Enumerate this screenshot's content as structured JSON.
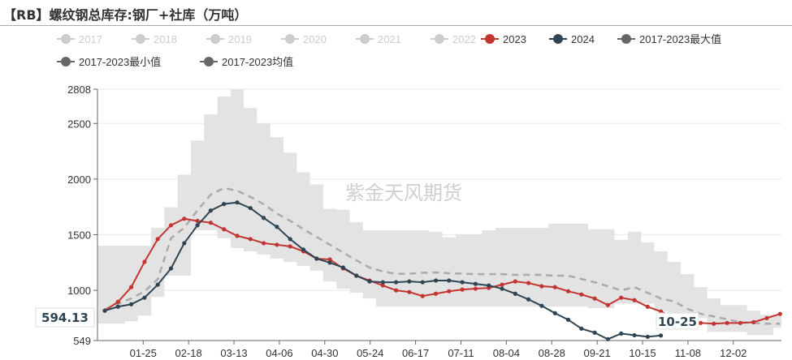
{
  "title": "【RB】螺纹钢总库存:钢厂+社库（万吨）",
  "watermark": "紫金天风期货",
  "legend": [
    {
      "label": "2017",
      "color": "#cccccc",
      "active": false
    },
    {
      "label": "2018",
      "color": "#cccccc",
      "active": false
    },
    {
      "label": "2019",
      "color": "#cccccc",
      "active": false
    },
    {
      "label": "2020",
      "color": "#cccccc",
      "active": false
    },
    {
      "label": "2021",
      "color": "#cccccc",
      "active": false
    },
    {
      "label": "2022",
      "color": "#cccccc",
      "active": false
    },
    {
      "label": "2023",
      "color": "#c23531",
      "active": true
    },
    {
      "label": "2024",
      "color": "#2f4554",
      "active": true
    },
    {
      "label": "2017-2023最大值",
      "color": "#666666",
      "active": true
    },
    {
      "label": "2017-2023最小值",
      "color": "#666666",
      "active": true
    },
    {
      "label": "2017-2023均值",
      "color": "#666666",
      "active": true
    }
  ],
  "axis_pointer": {
    "y_label": "594.13",
    "x_label": "10-25"
  },
  "chart_data": {
    "type": "line",
    "ylim": [
      549,
      2808
    ],
    "y_ticks": [
      "549",
      "1000",
      "1500",
      "2000",
      "2500",
      "2808"
    ],
    "x_tick_labels": [
      "01-25",
      "02-18",
      "03-13",
      "04-06",
      "04-30",
      "05-24",
      "06-17",
      "07-11",
      "08-04",
      "08-28",
      "09-21",
      "10-15",
      "11-08",
      "12-02"
    ],
    "grid": true,
    "legend_position": "top",
    "band": {
      "max": [
        1402,
        1402,
        1402,
        1402,
        1563,
        1747,
        2040,
        2347,
        2581,
        2742,
        2808,
        2639,
        2500,
        2376,
        2237,
        2061,
        1952,
        1732,
        1725,
        1614,
        1541,
        1541,
        1541,
        1541,
        1541,
        1527,
        1476,
        1505,
        1505,
        1541,
        1563,
        1563,
        1563,
        1563,
        1600,
        1600,
        1600,
        1549,
        1549,
        1454,
        1527,
        1432,
        1351,
        1256,
        1146,
        1029,
        927,
        868,
        868,
        817,
        780,
        780
      ],
      "min": [
        700,
        700,
        722,
        773,
        941,
        1132,
        1132,
        1541,
        1541,
        1468,
        1380,
        1351,
        1322,
        1285,
        1256,
        1219,
        1176,
        1080,
        1015,
        978,
        927,
        853,
        853,
        853,
        853,
        853,
        853,
        853,
        853,
        853,
        853,
        853,
        853,
        853,
        853,
        853,
        853,
        840,
        840,
        880,
        880,
        880,
        810,
        750,
        750,
        750,
        626,
        626,
        626,
        597,
        597,
        663
      ],
      "color": "#e3e3e3"
    },
    "series": [
      {
        "name": "2017-2023均值",
        "color": "#aaaaaa",
        "dashed": true,
        "values": [
          830,
          880,
          927,
          990,
          1100,
          1468,
          1563,
          1720,
          1860,
          1920,
          1895,
          1840,
          1775,
          1690,
          1625,
          1550,
          1480,
          1410,
          1340,
          1270,
          1205,
          1170,
          1148,
          1150,
          1158,
          1161,
          1154,
          1150,
          1146,
          1146,
          1146,
          1139,
          1139,
          1139,
          1132,
          1132,
          1103,
          1073,
          1037,
          1000,
          1029,
          978,
          927,
          900,
          835,
          790,
          765,
          740,
          714,
          707,
          700,
          700
        ]
      },
      {
        "name": "2023",
        "color": "#c23531",
        "values": [
          817,
          897,
          1029,
          1256,
          1461,
          1585,
          1644,
          1624,
          1608,
          1549,
          1490,
          1461,
          1424,
          1410,
          1395,
          1351,
          1285,
          1278,
          1197,
          1132,
          1088,
          1044,
          1000,
          985,
          949,
          970,
          992,
          1007,
          1015,
          1022,
          1051,
          1080,
          1066,
          1037,
          1029,
          992,
          963,
          927,
          868,
          934,
          912,
          853,
          810,
          758,
          729,
          707,
          700,
          707,
          707,
          714,
          751,
          788
        ]
      },
      {
        "name": "2024",
        "color": "#2f4554",
        "values": [
          817,
          853,
          875,
          934,
          1051,
          1197,
          1424,
          1585,
          1717,
          1776,
          1790,
          1739,
          1651,
          1571,
          1461,
          1366,
          1285,
          1249,
          1205,
          1132,
          1080,
          1073,
          1073,
          1080,
          1073,
          1088,
          1088,
          1073,
          1058,
          1044,
          1015,
          970,
          919,
          861,
          795,
          736,
          656,
          620,
          561,
          612,
          597,
          583,
          594.13
        ]
      }
    ]
  }
}
